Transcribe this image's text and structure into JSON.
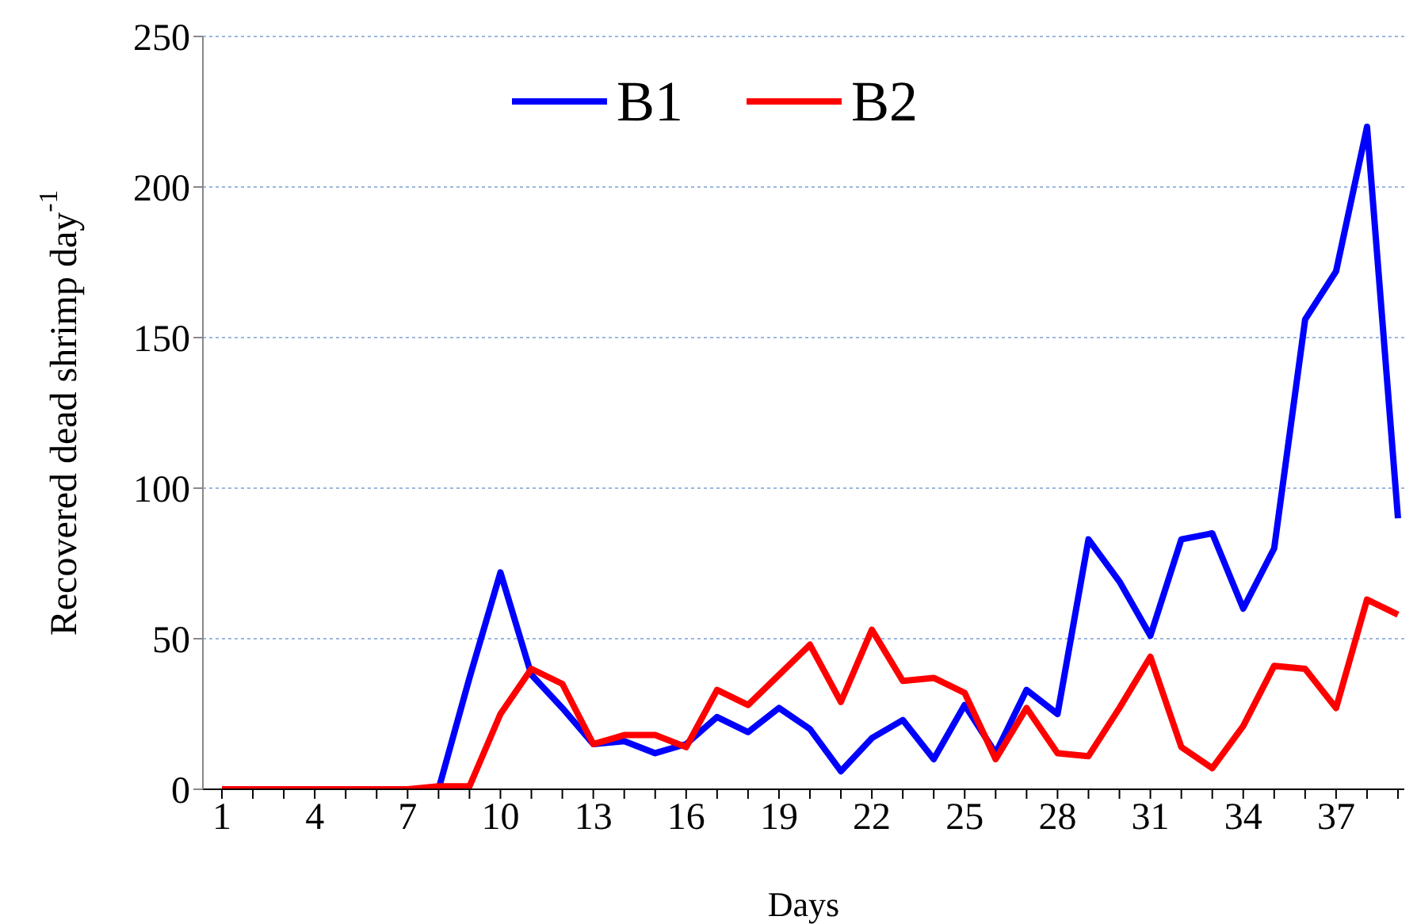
{
  "chart_data": {
    "type": "line",
    "xlabel": "Days",
    "ylabel": "Recovered dead shrimp day$^{-1}$",
    "categories": [
      "1",
      null,
      null,
      "4",
      null,
      null,
      "7",
      null,
      null,
      "10",
      null,
      null,
      "13",
      null,
      null,
      "16",
      null,
      null,
      "19",
      null,
      null,
      "22",
      null,
      null,
      "25",
      null,
      null,
      "28",
      null,
      null,
      "31",
      null,
      null,
      "34",
      null,
      null,
      "37",
      null,
      null
    ],
    "series": [
      {
        "name": "B1",
        "color": "#0000ff",
        "values": [
          null,
          null,
          null,
          null,
          null,
          null,
          null,
          0,
          37,
          72,
          38,
          27,
          15,
          16,
          12,
          15,
          24,
          19,
          27,
          20,
          6,
          17,
          23,
          10,
          28,
          12,
          33,
          25,
          83,
          69,
          51,
          83,
          85,
          60,
          80,
          156,
          172,
          220,
          90
        ]
      },
      {
        "name": "B2",
        "color": "#ff0000",
        "values": [
          0,
          0,
          0,
          0,
          0,
          0,
          0,
          1,
          1,
          25,
          40,
          35,
          15,
          18,
          18,
          14,
          33,
          28,
          38,
          48,
          29,
          53,
          36,
          37,
          32,
          10,
          27,
          12,
          11,
          27,
          44,
          14,
          7,
          21,
          41,
          40,
          27,
          63,
          58
        ]
      }
    ],
    "ylim": [
      0,
      250
    ],
    "yticks": [
      0,
      50,
      100,
      150,
      200,
      250
    ],
    "grid": "y",
    "legend": "top",
    "marker": "none",
    "line_style": "solid"
  }
}
